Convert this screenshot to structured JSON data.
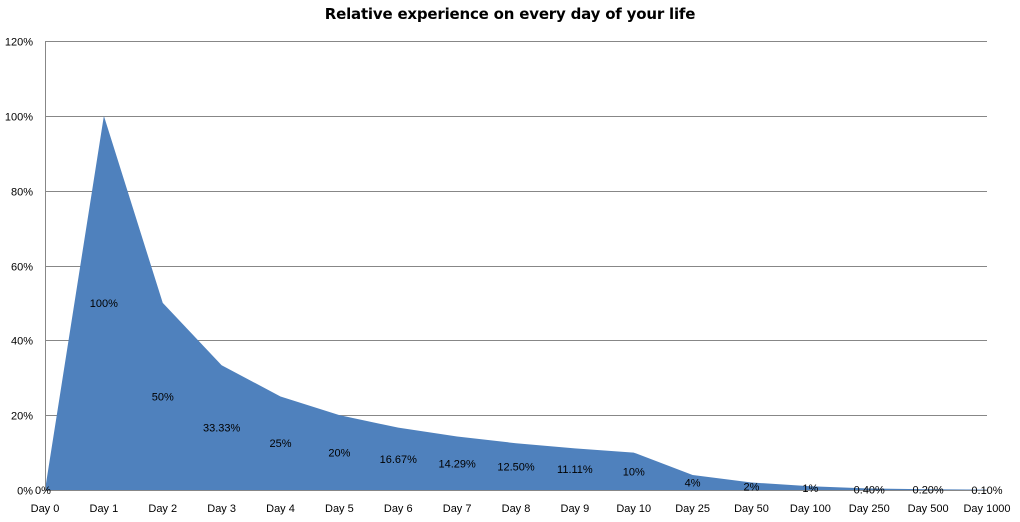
{
  "chart_data": {
    "type": "area",
    "title": "Relative experience on every day of your life",
    "xlabel": "",
    "ylabel": "",
    "ylim": [
      0,
      1.2
    ],
    "y_tick_values": [
      0,
      0.2,
      0.4,
      0.6,
      0.8,
      1.0,
      1.2
    ],
    "y_tick_labels": [
      "0%",
      "20%",
      "40%",
      "60%",
      "80%",
      "100%",
      "120%"
    ],
    "grid": "horizontal",
    "legend": "none",
    "categories": [
      "Day 0",
      "Day 1",
      "Day 2",
      "Day 3",
      "Day 4",
      "Day 5",
      "Day 6",
      "Day 7",
      "Day 8",
      "Day 9",
      "Day 10",
      "Day 25",
      "Day 50",
      "Day 100",
      "Day 250",
      "Day 500",
      "Day 1000"
    ],
    "series": [
      {
        "values": [
          0,
          1.0,
          0.5,
          0.3333,
          0.25,
          0.2,
          0.1667,
          0.1429,
          0.125,
          0.1111,
          0.1,
          0.04,
          0.02,
          0.01,
          0.004,
          0.002,
          0.001
        ],
        "data_labels": [
          "0%",
          "100%",
          "50%",
          "33.33%",
          "25%",
          "20%",
          "16.67%",
          "14.29%",
          "12.50%",
          "11.11%",
          "10%",
          "4%",
          "2%",
          "1%",
          "0.40%",
          "0.20%",
          "0.10%"
        ]
      }
    ],
    "colors": {
      "area_fill": "#4f81bd",
      "gridline": "#878787",
      "axis": "#878787"
    }
  }
}
